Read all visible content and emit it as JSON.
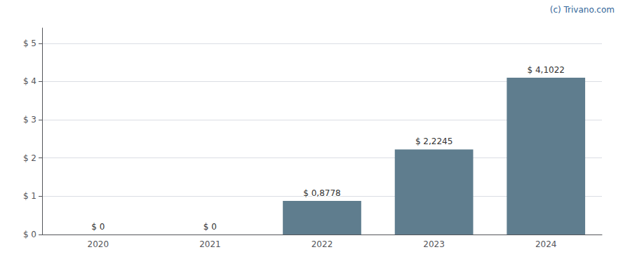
{
  "chart_data": {
    "type": "bar",
    "categories": [
      "2020",
      "2021",
      "2022",
      "2023",
      "2024"
    ],
    "values": [
      0,
      0,
      0.8778,
      2.2245,
      4.1022
    ],
    "value_labels": [
      "$ 0",
      "$ 0",
      "$ 0,8778",
      "$ 2,2245",
      "$ 4,1022"
    ],
    "data_labels": true,
    "color": "#5f7d8e",
    "ylim": [
      0,
      5.4
    ],
    "yticks": [
      {
        "value": 0,
        "label": "$ 0"
      },
      {
        "value": 1,
        "label": "$ 1"
      },
      {
        "value": 2,
        "label": "$ 2"
      },
      {
        "value": 3,
        "label": "$ 3"
      },
      {
        "value": 4,
        "label": "$ 4"
      },
      {
        "value": 5,
        "label": "$ 5"
      }
    ],
    "grid": true,
    "annotations": [
      "(c) Trivano.com"
    ]
  }
}
